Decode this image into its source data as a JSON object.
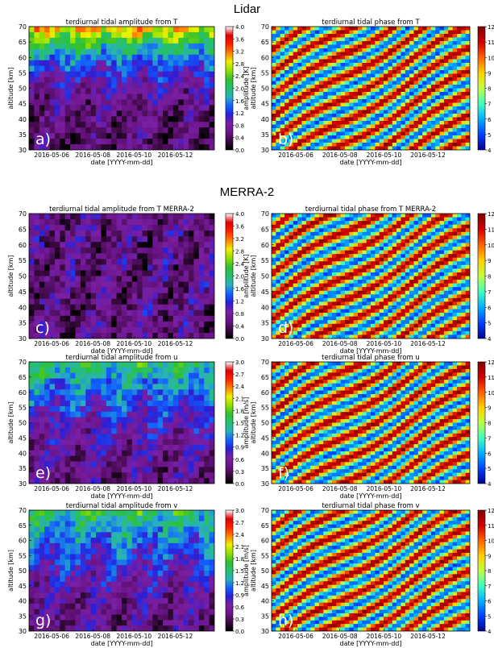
{
  "sections": {
    "lidar": "Lidar",
    "merra": "MERRA-2"
  },
  "colormaps": {
    "amplitude": [
      "#000000",
      "#3a0a3f",
      "#6a1487",
      "#7a1fa2",
      "#2a1fd8",
      "#1060ff",
      "#2ab0c0",
      "#26c070",
      "#30c030",
      "#90e000",
      "#f0f000",
      "#ff8000",
      "#ff2000",
      "#e00000",
      "#ffffff"
    ],
    "phase": [
      "#00008f",
      "#0040ff",
      "#00b0ff",
      "#40ffc0",
      "#c0ff40",
      "#ffd000",
      "#ff6000",
      "#d00000",
      "#800000"
    ]
  },
  "chart_data": [
    {
      "id": "a",
      "type": "heatmap",
      "panel_label": "a)",
      "title": "terdiurnal tidal amplitude from T",
      "xlabel": "date [YYYY-mm-dd]",
      "ylabel": "altitude [km]",
      "ylim": [
        30,
        70
      ],
      "yticks": [
        "30",
        "35",
        "40",
        "45",
        "50",
        "55",
        "60",
        "65",
        "70"
      ],
      "xticks": [
        "2016-05-06",
        "2016-05-08",
        "2016-05-10",
        "2016-05-12"
      ],
      "colorbar_label": "amplitude [K]",
      "colorbar_ticks": [
        "0.0",
        "0.4",
        "0.8",
        "1.2",
        "1.6",
        "2.0",
        "2.4",
        "2.8",
        "3.2",
        "3.6",
        "4.0"
      ],
      "colormap": "amplitude"
    },
    {
      "id": "b",
      "type": "heatmap",
      "panel_label": "b)",
      "title": "terdiurnal tidal phase from T",
      "xlabel": "date [YYYY-mm-dd]",
      "ylabel": "altitude [km]",
      "ylim": [
        30,
        70
      ],
      "yticks": [
        "30",
        "35",
        "40",
        "45",
        "50",
        "55",
        "60",
        "65",
        "70"
      ],
      "xticks": [
        "2016-05-06",
        "2016-05-08",
        "2016-05-10",
        "2016-05-12"
      ],
      "colorbar_label": "phase [UT]",
      "colorbar_ticks": [
        "4",
        "5",
        "6",
        "7",
        "8",
        "9",
        "10",
        "11",
        "12"
      ],
      "colormap": "phase"
    },
    {
      "id": "c",
      "type": "heatmap",
      "panel_label": "c)",
      "title": "terdiurnal tidal amplitude from T MERRA-2",
      "xlabel": "date [YYYY-mm-dd]",
      "ylabel": "altitude [km]",
      "ylim": [
        30,
        70
      ],
      "yticks": [
        "30",
        "35",
        "40",
        "45",
        "50",
        "55",
        "60",
        "65",
        "70"
      ],
      "xticks": [
        "2016-05-06",
        "2016-05-08",
        "2016-05-10",
        "2016-05-12"
      ],
      "colorbar_label": "amplitude [K]",
      "colorbar_ticks": [
        "0.0",
        "0.4",
        "0.8",
        "1.2",
        "1.6",
        "2.0",
        "2.4",
        "2.8",
        "3.2",
        "3.6",
        "4.0"
      ],
      "colormap": "amplitude"
    },
    {
      "id": "d",
      "type": "heatmap",
      "panel_label": "d)",
      "title": "terdiurnal tidal phase from T MERRA-2",
      "xlabel": "date [YYYY-mm-dd]",
      "ylabel": "altitude [km]",
      "ylim": [
        30,
        70
      ],
      "yticks": [
        "30",
        "35",
        "40",
        "45",
        "50",
        "55",
        "60",
        "65",
        "70"
      ],
      "xticks": [
        "2016-05-06",
        "2016-05-08",
        "2016-05-10",
        "2016-05-12"
      ],
      "colorbar_label": "phase [UT]",
      "colorbar_ticks": [
        "4",
        "5",
        "6",
        "7",
        "8",
        "9",
        "10",
        "11",
        "12"
      ],
      "colormap": "phase"
    },
    {
      "id": "e",
      "type": "heatmap",
      "panel_label": "e)",
      "title": "terdiurnal tidal amplitude from u",
      "xlabel": "date [YYYY-mm-dd]",
      "ylabel": "altitude [km]",
      "ylim": [
        30,
        70
      ],
      "yticks": [
        "30",
        "35",
        "40",
        "45",
        "50",
        "55",
        "60",
        "65",
        "70"
      ],
      "xticks": [
        "2016-05-06",
        "2016-05-08",
        "2016-05-10",
        "2016-05-12"
      ],
      "colorbar_label": "amplitude [m/s]",
      "colorbar_ticks": [
        "0.0",
        "0.3",
        "0.6",
        "0.9",
        "1.2",
        "1.5",
        "1.8",
        "2.1",
        "2.4",
        "2.7",
        "3.0"
      ],
      "colormap": "amplitude"
    },
    {
      "id": "f",
      "type": "heatmap",
      "panel_label": "f)",
      "title": "terdiurnal tidal phase from u",
      "xlabel": "date [YYYY-mm-dd]",
      "ylabel": "altitude [km]",
      "ylim": [
        30,
        70
      ],
      "yticks": [
        "30",
        "35",
        "40",
        "45",
        "50",
        "55",
        "60",
        "65",
        "70"
      ],
      "xticks": [
        "2016-05-06",
        "2016-05-08",
        "2016-05-10",
        "2016-05-12"
      ],
      "colorbar_label": "phase [UT]",
      "colorbar_ticks": [
        "4",
        "5",
        "6",
        "7",
        "8",
        "9",
        "10",
        "11",
        "12"
      ],
      "colormap": "phase"
    },
    {
      "id": "g",
      "type": "heatmap",
      "panel_label": "g)",
      "title": "terdiurnal tidal amplitude from v",
      "xlabel": "date [YYYY-mm-dd]",
      "ylabel": "altitude [km]",
      "ylim": [
        30,
        70
      ],
      "yticks": [
        "30",
        "35",
        "40",
        "45",
        "50",
        "55",
        "60",
        "65",
        "70"
      ],
      "xticks": [
        "2016-05-06",
        "2016-05-08",
        "2016-05-10",
        "2016-05-12"
      ],
      "colorbar_label": "amplitude [m/s]",
      "colorbar_ticks": [
        "0.0",
        "0.3",
        "0.6",
        "0.9",
        "1.2",
        "1.5",
        "1.8",
        "2.1",
        "2.4",
        "2.7",
        "3.0"
      ],
      "colormap": "amplitude"
    },
    {
      "id": "h",
      "type": "heatmap",
      "panel_label": "h)",
      "title": "terdiurnal tidal phase from v",
      "xlabel": "date [YYYY-mm-dd]",
      "ylabel": "altitude [km]",
      "ylim": [
        30,
        70
      ],
      "yticks": [
        "30",
        "35",
        "40",
        "45",
        "50",
        "55",
        "60",
        "65",
        "70"
      ],
      "xticks": [
        "2016-05-06",
        "2016-05-08",
        "2016-05-10",
        "2016-05-12"
      ],
      "colorbar_label": "phase [UT]",
      "colorbar_ticks": [
        "4",
        "5",
        "6",
        "7",
        "8",
        "9",
        "10",
        "11",
        "12"
      ],
      "colormap": "phase"
    }
  ]
}
